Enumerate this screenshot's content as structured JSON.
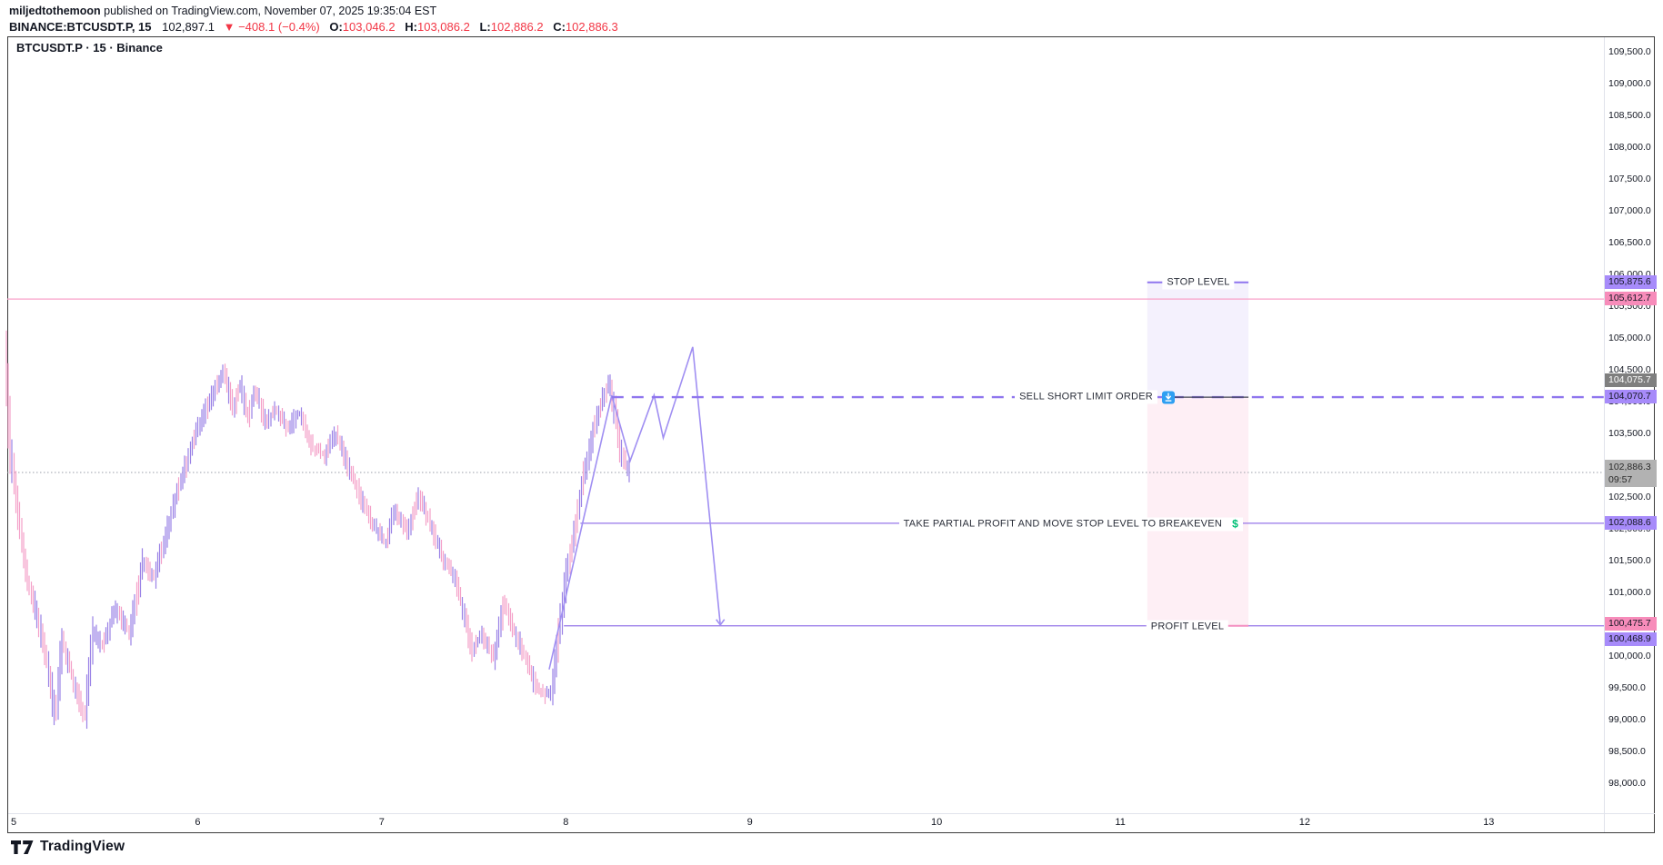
{
  "header": {
    "byline_user": "miljedtothemoon",
    "byline_rest": " published on TradingView.com, November 07, 2025 19:35:04 EST",
    "symbol": "BINANCE:BTCUSDT.P, 15",
    "last_price": "102,897.1",
    "change": "▼ −408.1 (−0.4%)",
    "ohlc": [
      {
        "label": "O:",
        "value": "103,046.2"
      },
      {
        "label": "H:",
        "value": "103,086.2"
      },
      {
        "label": "L:",
        "value": "102,886.2"
      },
      {
        "label": "C:",
        "value": "102,886.3"
      }
    ]
  },
  "chart": {
    "title": "BTCUSDT.P · 15 · Binance"
  },
  "annotations": {
    "stop_label": "STOP LEVEL",
    "entry_label": "SELL SHORT LIMIT ORDER",
    "partial_label": "TAKE PARTIAL PROFIT AND MOVE STOP LEVEL TO BREAKEVEN",
    "partial_dollar": "$",
    "profit_label": "PROFIT LEVEL"
  },
  "price_axis": {
    "ticks": [
      "109,500.0",
      "109,000.0",
      "108,500.0",
      "108,000.0",
      "107,500.0",
      "107,000.0",
      "106,500.0",
      "106,000.0",
      "105,500.0",
      "105,000.0",
      "104,500.0",
      "104,000.0",
      "103,500.0",
      "103,000.0",
      "102,500.0",
      "102,000.0",
      "101,500.0",
      "101,000.0",
      "100,500.0",
      "100,000.0",
      "99,500.0",
      "99,000.0",
      "98,500.0",
      "98,000.0"
    ],
    "labels": [
      {
        "text": "105,875.6",
        "price": 105875.6,
        "bg": "#a78bfa",
        "fg": "#131722",
        "offset": 0
      },
      {
        "text": "105,612.7",
        "price": 105612.7,
        "bg": "#f78cba",
        "fg": "#131722",
        "offset": 0
      },
      {
        "text": "104,075.7",
        "price": 104075.7,
        "bg": "#7f7f7f",
        "fg": "#ffffff",
        "offset": -18
      },
      {
        "text": "104,070.7",
        "price": 104070.7,
        "bg": "#a78bfa",
        "fg": "#131722",
        "offset": 0
      },
      {
        "text": "102,088.6",
        "price": 102088.6,
        "bg": "#a78bfa",
        "fg": "#131722",
        "offset": 0
      },
      {
        "text": "100,475.7",
        "price": 100475.7,
        "bg": "#f78cba",
        "fg": "#131722",
        "offset": -2
      },
      {
        "text": "100,468.9",
        "price": 100468.9,
        "bg": "#a78bfa",
        "fg": "#131722",
        "offset": 15
      }
    ],
    "countdown_label": {
      "text": "102,886.3",
      "sub": "09:57",
      "price": 102886.3,
      "bg": "#b2b2b2",
      "fg": "#2a2a2a"
    }
  },
  "time_axis": {
    "labels": [
      "5",
      "6",
      "7",
      "8",
      "9",
      "10",
      "11",
      "12",
      "13"
    ]
  },
  "footer": {
    "logo_text": "TradingView"
  },
  "colors": {
    "up": "#9a82e6",
    "down": "#f4a0c8",
    "entry_dash": "#8f76ee",
    "ray_purple": "#9575e8",
    "pink_line": "#f9a0c8",
    "pink_strong": "#f48fc0",
    "dotted_gray": "#9a9ea8",
    "dark_line": "#3f4450",
    "stop_fill": "rgba(143,118,240,0.10)",
    "profit_fill": "rgba(247,140,186,0.14)",
    "red": "#f23645",
    "blue": "#2f9ff2",
    "green": "#00c076"
  },
  "chart_data": {
    "type": "candlestick",
    "symbol": "BINANCE:BTCUSDT.P",
    "interval": "15",
    "exchange": "Binance",
    "title": "BTCUSDT.P · 15 · Binance",
    "price_range": [
      98000,
      109500
    ],
    "price_tick_step": 500,
    "time_axis_days_november_2025": [
      5,
      6,
      7,
      8,
      9,
      10,
      11,
      12,
      13
    ],
    "last_price": 102886.3,
    "bar_countdown": "09:57",
    "bars_per_day": 96,
    "price_path": [
      [
        4.96,
        104800
      ],
      [
        4.99,
        103200
      ],
      [
        5.03,
        102300
      ],
      [
        5.08,
        101200
      ],
      [
        5.13,
        100700
      ],
      [
        5.19,
        99900
      ],
      [
        5.235,
        99000
      ],
      [
        5.27,
        100250
      ],
      [
        5.31,
        99850
      ],
      [
        5.395,
        99030
      ],
      [
        5.44,
        100400
      ],
      [
        5.49,
        100150
      ],
      [
        5.56,
        100750
      ],
      [
        5.64,
        100350
      ],
      [
        5.71,
        101500
      ],
      [
        5.77,
        101200
      ],
      [
        5.83,
        101850
      ],
      [
        5.91,
        102700
      ],
      [
        5.99,
        103450
      ],
      [
        6.06,
        103950
      ],
      [
        6.15,
        104480
      ],
      [
        6.2,
        103900
      ],
      [
        6.24,
        104280
      ],
      [
        6.28,
        103750
      ],
      [
        6.32,
        104180
      ],
      [
        6.38,
        103650
      ],
      [
        6.43,
        103900
      ],
      [
        6.5,
        103550
      ],
      [
        6.56,
        103850
      ],
      [
        6.63,
        103300
      ],
      [
        6.7,
        103150
      ],
      [
        6.76,
        103500
      ],
      [
        6.83,
        102950
      ],
      [
        6.9,
        102450
      ],
      [
        6.96,
        102050
      ],
      [
        7.03,
        101800
      ],
      [
        7.08,
        102300
      ],
      [
        7.15,
        101950
      ],
      [
        7.21,
        102500
      ],
      [
        7.27,
        102100
      ],
      [
        7.34,
        101550
      ],
      [
        7.4,
        101250
      ],
      [
        7.46,
        100650
      ],
      [
        7.5,
        100050
      ],
      [
        7.55,
        100350
      ],
      [
        7.62,
        99950
      ],
      [
        7.67,
        100850
      ],
      [
        7.72,
        100450
      ],
      [
        7.78,
        100050
      ],
      [
        7.84,
        99550
      ],
      [
        7.89,
        99380
      ],
      [
        7.93,
        99420
      ],
      [
        7.97,
        100350
      ],
      [
        8.01,
        101250
      ],
      [
        8.06,
        102050
      ],
      [
        8.11,
        102900
      ],
      [
        8.16,
        103550
      ],
      [
        8.21,
        104050
      ],
      [
        8.245,
        104300
      ],
      [
        8.28,
        103750
      ],
      [
        8.31,
        103150
      ],
      [
        8.355,
        102886.3
      ]
    ],
    "levels": [
      {
        "name": "stop",
        "label": "STOP LEVEL",
        "price": 105875.6
      },
      {
        "name": "pink_resistance",
        "price": 105612.7
      },
      {
        "name": "entry",
        "label": "SELL SHORT LIMIT ORDER",
        "price": 104070.7,
        "start_day": 8.25
      },
      {
        "name": "entry_alt",
        "price": 104075.7
      },
      {
        "name": "current",
        "price": 102886.3
      },
      {
        "name": "partial_profit",
        "label": "TAKE PARTIAL PROFIT AND MOVE STOP LEVEL TO BREAKEVEN",
        "price": 102088.6,
        "start_day": 8.08
      },
      {
        "name": "profit",
        "label": "PROFIT LEVEL",
        "price": 100475.7,
        "start_day": 7.99
      },
      {
        "name": "profit_alt",
        "price": 100468.9
      }
    ],
    "position_box": {
      "day_start": 11.16,
      "day_end": 11.71,
      "stop_price": 105875.6,
      "entry_price": 104070.7,
      "profit_price": 100475.7
    },
    "projection_path": [
      [
        7.91,
        99790
      ],
      [
        8.25,
        104100
      ],
      [
        8.35,
        103070
      ],
      [
        8.48,
        104100
      ],
      [
        8.53,
        103430
      ],
      [
        8.69,
        104860
      ],
      [
        8.84,
        100490
      ]
    ]
  }
}
